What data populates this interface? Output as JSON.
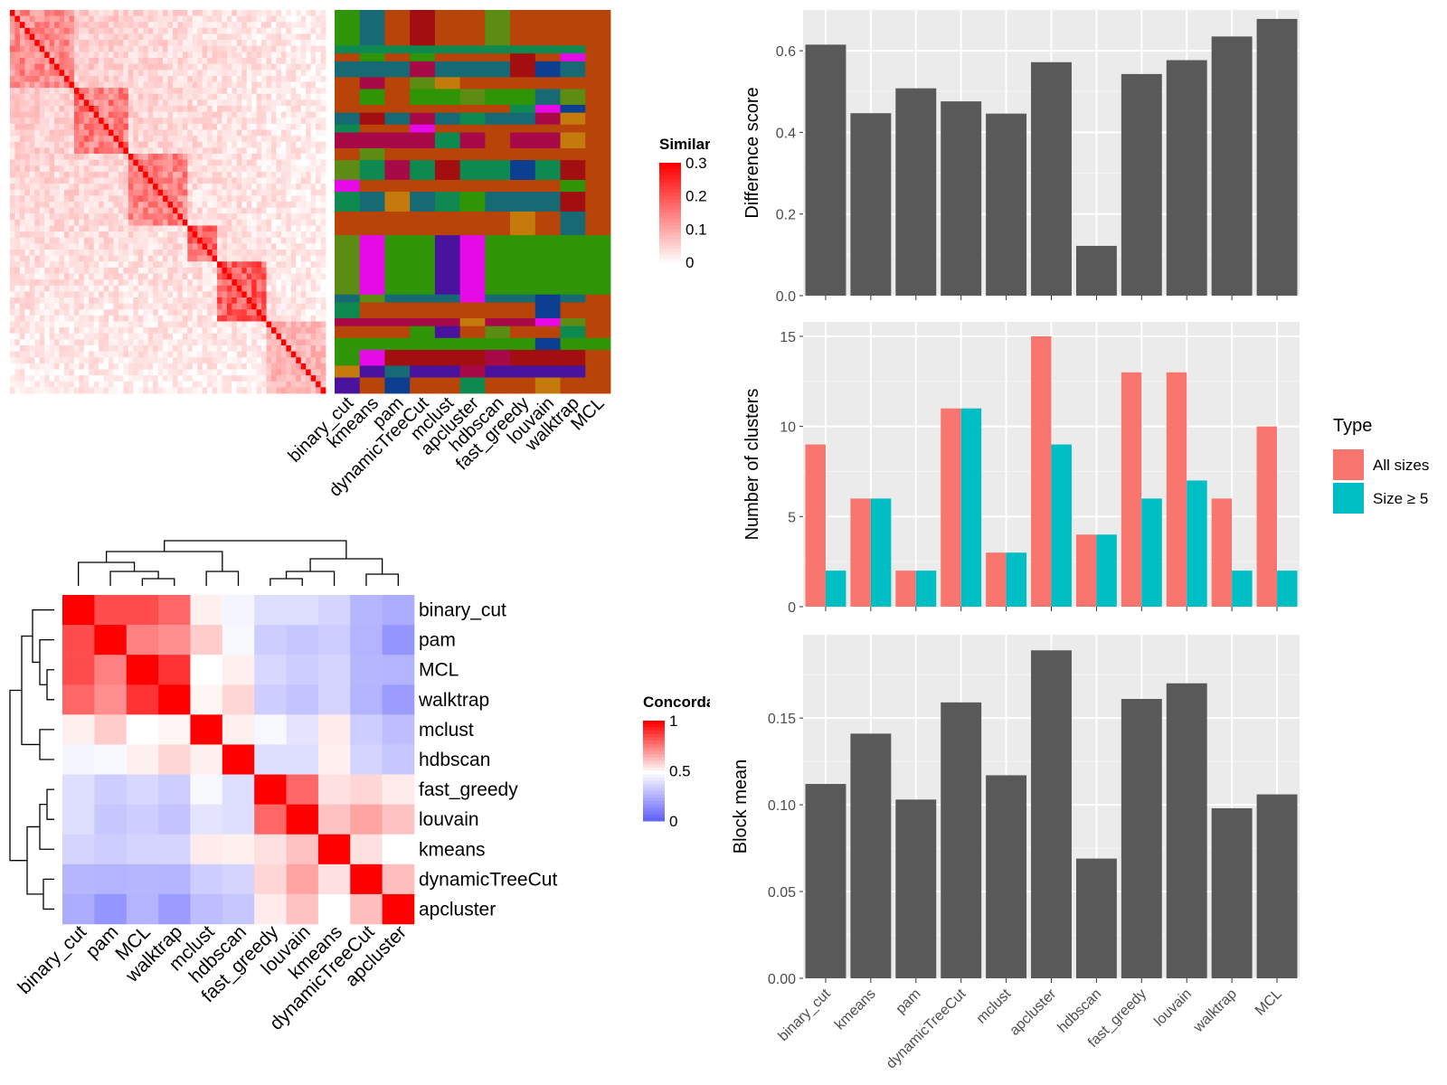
{
  "chart_data": [
    {
      "id": "similarity_heatmap",
      "type": "heatmap",
      "title": "",
      "legend": {
        "title": "Similarity",
        "ticks": [
          "0.3",
          "0.2",
          "0.1",
          "0"
        ],
        "colors": [
          "#ffffff",
          "#ff0000"
        ],
        "range": [
          0,
          0.3
        ],
        "placement": "right"
      },
      "method_labels": [
        "binary_cut",
        "kmeans",
        "pam",
        "dynamicTreeCut",
        "mclust",
        "apcluster",
        "hdbscan",
        "fast_greedy",
        "louvain",
        "walktrap",
        "MCL"
      ],
      "diagonal_blocks": [
        {
          "from": 0.0,
          "to": 0.2,
          "level": 0.16
        },
        {
          "from": 0.2,
          "to": 0.38,
          "level": 0.18
        },
        {
          "from": 0.38,
          "to": 0.56,
          "level": 0.17
        },
        {
          "from": 0.56,
          "to": 0.66,
          "level": 0.2
        },
        {
          "from": 0.66,
          "to": 0.82,
          "level": 0.22
        },
        {
          "from": 0.82,
          "to": 1.0,
          "level": 0.1
        }
      ]
    },
    {
      "id": "cluster_membership",
      "type": "heatmap",
      "title": "",
      "columns": [
        "binary_cut",
        "kmeans",
        "pam",
        "dynamicTreeCut",
        "mclust",
        "apcluster",
        "hdbscan",
        "fast_greedy",
        "louvain",
        "walktrap",
        "MCL"
      ],
      "palette": [
        "#b8440a",
        "#c57a0c",
        "#2f9406",
        "#0e8a50",
        "#176a74",
        "#a80a48",
        "#a30e10",
        "#4a139e",
        "#0c3f8f",
        "#e60ae6",
        "#5c8c14"
      ]
    },
    {
      "id": "concordance_heatmap",
      "type": "heatmap",
      "title": "",
      "legend": {
        "title": "Concordance",
        "ticks": [
          "1",
          "0.5",
          "0"
        ],
        "colors": [
          "#0000ff",
          "#ffffff",
          "#ff0000"
        ],
        "range": [
          0,
          1
        ],
        "placement": "right"
      },
      "rows": [
        "binary_cut",
        "pam",
        "MCL",
        "walktrap",
        "mclust",
        "hdbscan",
        "fast_greedy",
        "louvain",
        "kmeans",
        "dynamicTreeCut",
        "apcluster"
      ],
      "columns": [
        "binary_cut",
        "pam",
        "MCL",
        "walktrap",
        "mclust",
        "hdbscan",
        "fast_greedy",
        "louvain",
        "kmeans",
        "dynamicTreeCut",
        "apcluster"
      ],
      "values": [
        [
          1.0,
          0.85,
          0.85,
          0.8,
          0.53,
          0.47,
          0.4,
          0.4,
          0.37,
          0.28,
          0.25
        ],
        [
          0.85,
          1.0,
          0.75,
          0.72,
          0.6,
          0.48,
          0.35,
          0.33,
          0.35,
          0.27,
          0.18
        ],
        [
          0.85,
          0.75,
          1.0,
          0.9,
          0.5,
          0.53,
          0.38,
          0.35,
          0.37,
          0.28,
          0.27
        ],
        [
          0.8,
          0.72,
          0.9,
          1.0,
          0.52,
          0.58,
          0.35,
          0.32,
          0.37,
          0.27,
          0.2
        ],
        [
          0.53,
          0.6,
          0.5,
          0.52,
          1.0,
          0.53,
          0.48,
          0.42,
          0.54,
          0.35,
          0.3
        ],
        [
          0.47,
          0.48,
          0.53,
          0.58,
          0.53,
          1.0,
          0.4,
          0.4,
          0.53,
          0.37,
          0.33
        ],
        [
          0.4,
          0.35,
          0.38,
          0.35,
          0.48,
          0.4,
          1.0,
          0.8,
          0.56,
          0.58,
          0.54
        ],
        [
          0.4,
          0.33,
          0.35,
          0.32,
          0.42,
          0.4,
          0.8,
          1.0,
          0.62,
          0.68,
          0.62
        ],
        [
          0.37,
          0.35,
          0.37,
          0.37,
          0.54,
          0.53,
          0.56,
          0.62,
          1.0,
          0.56,
          0.5
        ],
        [
          0.28,
          0.27,
          0.28,
          0.27,
          0.35,
          0.37,
          0.58,
          0.68,
          0.56,
          1.0,
          0.63
        ],
        [
          0.25,
          0.18,
          0.27,
          0.2,
          0.3,
          0.33,
          0.54,
          0.62,
          0.5,
          0.63,
          1.0
        ]
      ]
    },
    {
      "id": "difference_score",
      "type": "bar",
      "categories": [
        "binary_cut",
        "kmeans",
        "pam",
        "dynamicTreeCut",
        "mclust",
        "apcluster",
        "hdbscan",
        "fast_greedy",
        "louvain",
        "walktrap",
        "MCL"
      ],
      "values": [
        0.615,
        0.447,
        0.508,
        0.476,
        0.446,
        0.572,
        0.122,
        0.543,
        0.577,
        0.635,
        0.678
      ],
      "xlabel": "",
      "ylabel": "Difference score",
      "ylim": [
        0,
        0.7
      ],
      "yticks": [
        "0.0",
        "0.2",
        "0.4",
        "0.6"
      ],
      "ytick_values": [
        0,
        0.2,
        0.4,
        0.6
      ],
      "grid": true,
      "bar_color": "#595959"
    },
    {
      "id": "number_of_clusters",
      "type": "bar",
      "categories": [
        "binary_cut",
        "kmeans",
        "pam",
        "dynamicTreeCut",
        "mclust",
        "apcluster",
        "hdbscan",
        "fast_greedy",
        "louvain",
        "walktrap",
        "MCL"
      ],
      "series": [
        {
          "name": "All sizes",
          "color": "#f8766d",
          "values": [
            9,
            6,
            2,
            11,
            3,
            15,
            4,
            13,
            13,
            6,
            10
          ]
        },
        {
          "name": "Size ≥ 5",
          "color": "#00bfc4",
          "values": [
            2,
            6,
            2,
            11,
            3,
            9,
            4,
            6,
            7,
            2,
            2
          ]
        }
      ],
      "xlabel": "",
      "ylabel": "Number of clusters",
      "ylim": [
        0,
        15.8
      ],
      "yticks": [
        "0",
        "5",
        "10",
        "15"
      ],
      "ytick_values": [
        0,
        5,
        10,
        15
      ],
      "legend": {
        "title": "Type",
        "placement": "right"
      },
      "grid": true
    },
    {
      "id": "block_mean",
      "type": "bar",
      "categories": [
        "binary_cut",
        "kmeans",
        "pam",
        "dynamicTreeCut",
        "mclust",
        "apcluster",
        "hdbscan",
        "fast_greedy",
        "louvain",
        "walktrap",
        "MCL"
      ],
      "values": [
        0.112,
        0.141,
        0.103,
        0.159,
        0.117,
        0.189,
        0.069,
        0.161,
        0.17,
        0.098,
        0.106
      ],
      "xlabel": "",
      "ylabel": "Block mean",
      "ylim": [
        0,
        0.198
      ],
      "yticks": [
        "0.00",
        "0.05",
        "0.10",
        "0.15"
      ],
      "ytick_values": [
        0,
        0.05,
        0.1,
        0.15
      ],
      "grid": true,
      "bar_color": "#595959"
    }
  ]
}
